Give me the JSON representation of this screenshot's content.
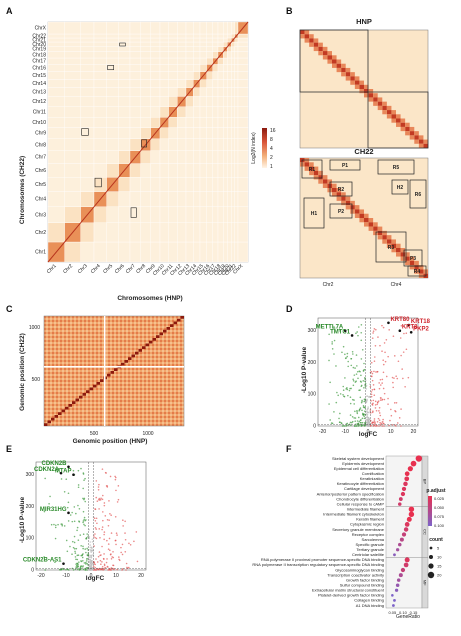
{
  "colors": {
    "heat_low": "#fdf6e8",
    "heat_mid": "#f2b67a",
    "heat_high": "#b52a1c",
    "volcano_up": "#e25656",
    "volcano_down": "#3f9a3f",
    "volcano_ns": "#bbbbbb",
    "dot_low_p": "#e8304f",
    "dot_high_p": "#7d63c9"
  },
  "panels": {
    "A": {
      "label": "A",
      "ylabel": "Chromosomes (CH22)",
      "xlabel": "Chromosomes (HNP)",
      "y_chroms": [
        "ChrX",
        "Chr22",
        "Chr21",
        "Chr20",
        "Chr19",
        "Chr18",
        "Chr17",
        "Chr16",
        "Chr15",
        "Chr14",
        "Chr13",
        "Chr12",
        "Chr11",
        "Chr10",
        "Chr9",
        "Chr8",
        "Chr7",
        "Chr6",
        "Chr5",
        "Chr4",
        "Chr3",
        "Chr2",
        "Chr1"
      ],
      "x_chroms": [
        "Chr1",
        "Chr2",
        "Chr3",
        "Chr4",
        "Chr5",
        "Chr6",
        "Chr7",
        "Chr8",
        "Chr9",
        "Chr10",
        "Chr11",
        "Chr12",
        "Chr13",
        "Chr14",
        "Chr15",
        "Chr16",
        "Chr17",
        "Chr18",
        "Chr19",
        "Chr20",
        "Chr21",
        "Chr22",
        "ChrX"
      ],
      "colorbar_label": "Log2(N index)",
      "colorbar_ticks": [
        "16",
        "8",
        "4",
        "2",
        "1"
      ]
    },
    "B": {
      "label": "B",
      "top_title": "HNP",
      "bottom_title": "CH22",
      "regions": [
        "R1",
        "P1",
        "R5",
        "R2",
        "H2",
        "R6",
        "H1",
        "P2",
        "R3",
        "P3",
        "R4"
      ],
      "x_labels": [
        "Chr2",
        "Chr4"
      ]
    },
    "C": {
      "label": "C",
      "ylabel": "Genomic position (CH22)",
      "xlabel": "Genomic position (HNP)",
      "y_ticks": [
        "1000",
        "500"
      ],
      "x_ticks": [
        "500",
        "1000"
      ]
    },
    "D": {
      "label": "D",
      "ylabel": "-Log10 P-value",
      "xlabel": "logFC",
      "x_ticks": [
        "-20",
        "-10",
        "0",
        "10",
        "20"
      ],
      "y_ticks": [
        "300",
        "200",
        "100",
        "0"
      ],
      "genes_up": [
        "KRT80",
        "KRT18",
        "KRT8",
        "PKP2"
      ],
      "genes_down": [
        "METTL7A",
        "TMTC1"
      ]
    },
    "E": {
      "label": "E",
      "ylabel": "-Log10 P-value",
      "xlabel": "logFC",
      "x_ticks": [
        "-20",
        "-10",
        "0",
        "10",
        "20"
      ],
      "y_ticks": [
        "300",
        "200",
        "100",
        "0"
      ],
      "genes": [
        "CDKN2B",
        "CDKN2A",
        "MTAP",
        "MIR31HG",
        "CDKN2B-AS1"
      ]
    },
    "F": {
      "label": "F",
      "xlabel": "GeneRatio",
      "x_ticks": [
        "0.05",
        "0.10",
        "0.15"
      ],
      "groups": [
        "BP",
        "CC",
        "MF"
      ],
      "legend_padj_title": "p.adjust",
      "legend_padj_ticks": [
        "0.025",
        "0.050",
        "0.075",
        "0.100"
      ],
      "legend_count_title": "count",
      "legend_count_ticks": [
        "5",
        "10",
        "15",
        "20"
      ]
    }
  },
  "chart_data": [
    {
      "type": "scatter",
      "panel": "D",
      "xlabel": "logFC",
      "ylabel": "-Log10 P-value",
      "xlim": [
        -22,
        22
      ],
      "ylim": [
        0,
        340
      ],
      "labeled_points": [
        {
          "name": "KRT80",
          "x": 9,
          "y": 325
        },
        {
          "name": "KRT18",
          "x": 18,
          "y": 318
        },
        {
          "name": "KRT8",
          "x": 14,
          "y": 300
        },
        {
          "name": "PKP2",
          "x": 19,
          "y": 295
        },
        {
          "name": "METTL7A",
          "x": -10,
          "y": 300
        },
        {
          "name": "TMTC1",
          "x": -7,
          "y": 285
        }
      ]
    },
    {
      "type": "scatter",
      "panel": "E",
      "xlabel": "logFC",
      "ylabel": "-Log10 P-value",
      "xlim": [
        -22,
        22
      ],
      "ylim": [
        0,
        340
      ],
      "labeled_points": [
        {
          "name": "CDKN2B",
          "x": -9,
          "y": 325
        },
        {
          "name": "CDKN2A",
          "x": -12,
          "y": 305
        },
        {
          "name": "MTAP",
          "x": -7,
          "y": 300
        },
        {
          "name": "MIR31HG",
          "x": -9,
          "y": 180
        },
        {
          "name": "CDKN2B-AS1",
          "x": -11,
          "y": 20
        }
      ]
    },
    {
      "type": "scatter",
      "panel": "F",
      "subtype": "dotplot",
      "xlabel": "GeneRatio",
      "xlim": [
        0.02,
        0.19
      ],
      "terms": [
        {
          "term": "Skeletal system development",
          "group": "BP",
          "ratio": 0.175,
          "count": 20,
          "padj": 0.01
        },
        {
          "term": "Epidermis development",
          "group": "BP",
          "ratio": 0.15,
          "count": 17,
          "padj": 0.01
        },
        {
          "term": "Epidermal cell differentiation",
          "group": "BP",
          "ratio": 0.135,
          "count": 15,
          "padj": 0.01
        },
        {
          "term": "Cornification",
          "group": "BP",
          "ratio": 0.12,
          "count": 13,
          "padj": 0.01
        },
        {
          "term": "Keratinization",
          "group": "BP",
          "ratio": 0.118,
          "count": 13,
          "padj": 0.015
        },
        {
          "term": "Keratinocyte differentiation",
          "group": "BP",
          "ratio": 0.112,
          "count": 12,
          "padj": 0.02
        },
        {
          "term": "Cartilage development",
          "group": "BP",
          "ratio": 0.105,
          "count": 11,
          "padj": 0.02
        },
        {
          "term": "Anterior/posterior pattern specification",
          "group": "BP",
          "ratio": 0.1,
          "count": 11,
          "padj": 0.02
        },
        {
          "term": "Chondrocyte differentiation",
          "group": "BP",
          "ratio": 0.09,
          "count": 9,
          "padj": 0.03
        },
        {
          "term": "Cellular response to cAMP",
          "group": "BP",
          "ratio": 0.085,
          "count": 8,
          "padj": 0.03
        },
        {
          "term": "Intermediate filament",
          "group": "CC",
          "ratio": 0.14,
          "count": 16,
          "padj": 0.01
        },
        {
          "term": "Intermediate filament cytoskeleton",
          "group": "CC",
          "ratio": 0.14,
          "count": 16,
          "padj": 0.01
        },
        {
          "term": "Keratin filament",
          "group": "CC",
          "ratio": 0.13,
          "count": 14,
          "padj": 0.01
        },
        {
          "term": "Cytoplasmic region",
          "group": "CC",
          "ratio": 0.12,
          "count": 13,
          "padj": 0.02
        },
        {
          "term": "Secretory granule membrane",
          "group": "CC",
          "ratio": 0.115,
          "count": 12,
          "padj": 0.03
        },
        {
          "term": "Receptor complex",
          "group": "CC",
          "ratio": 0.105,
          "count": 11,
          "padj": 0.04
        },
        {
          "term": "Sarcolemma",
          "group": "CC",
          "ratio": 0.095,
          "count": 10,
          "padj": 0.05
        },
        {
          "term": "Specific granule",
          "group": "CC",
          "ratio": 0.085,
          "count": 8,
          "padj": 0.06
        },
        {
          "term": "Tertiary granule",
          "group": "CC",
          "ratio": 0.075,
          "count": 7,
          "padj": 0.07
        },
        {
          "term": "Centriolar satellite",
          "group": "CC",
          "ratio": 0.06,
          "count": 5,
          "padj": 0.09
        },
        {
          "term": "RNA polymerase II proximal promoter sequence-specific DNA binding",
          "group": "MF",
          "ratio": 0.12,
          "count": 14,
          "padj": 0.02
        },
        {
          "term": "RNA polymerase II transcription regulatory sequence-specific DNA binding",
          "group": "MF",
          "ratio": 0.115,
          "count": 13,
          "padj": 0.03
        },
        {
          "term": "Glycosaminoglycan binding",
          "group": "MF",
          "ratio": 0.1,
          "count": 11,
          "padj": 0.04
        },
        {
          "term": "Transcription coactivator activity",
          "group": "MF",
          "ratio": 0.09,
          "count": 10,
          "padj": 0.06
        },
        {
          "term": "Growth factor binding",
          "group": "MF",
          "ratio": 0.08,
          "count": 8,
          "padj": 0.07
        },
        {
          "term": "Sulfur compound binding",
          "group": "MF",
          "ratio": 0.075,
          "count": 8,
          "padj": 0.08
        },
        {
          "term": "Extracellular matrix structural constituent",
          "group": "MF",
          "ratio": 0.07,
          "count": 7,
          "padj": 0.09
        },
        {
          "term": "Platelet-derived growth factor binding",
          "group": "MF",
          "ratio": 0.05,
          "count": 4,
          "padj": 0.1
        },
        {
          "term": "Collagen binding",
          "group": "MF",
          "ratio": 0.06,
          "count": 5,
          "padj": 0.1
        },
        {
          "term": "A1 DNA binding",
          "group": "MF",
          "ratio": 0.055,
          "count": 5,
          "padj": 0.1
        }
      ]
    }
  ]
}
